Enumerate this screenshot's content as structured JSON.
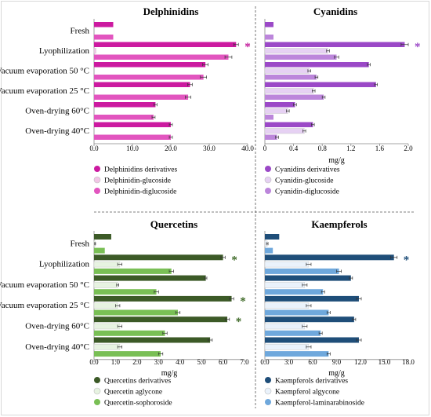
{
  "categories": [
    "Fresh",
    "Lyophilization",
    "Vacuum evaporation 50 °C",
    "Vacuum evaporation 25 °C",
    "Oven-drying 60°C",
    "Oven-drying 40°C"
  ],
  "chart_data": [
    {
      "type": "bar",
      "orientation": "horizontal",
      "title": "Delphinidins",
      "xlabel": "",
      "xlim": [
        0,
        40
      ],
      "ticks": [
        "0.0",
        "10.0",
        "20.0",
        "30.0",
        "40.0"
      ],
      "series": [
        {
          "name": "Delphinidins derivatives",
          "color": "#cc1aa0",
          "values": [
            5.0,
            37.0,
            29.0,
            25.0,
            16.0,
            20.0
          ],
          "errors": [
            0,
            0.6,
            0.7,
            0.6,
            0.4,
            0.4
          ]
        },
        {
          "name": "Delphinidin-glucoside",
          "color": "#f2c6e6",
          "values": [
            0,
            0.5,
            0,
            0,
            0,
            0
          ],
          "errors": [
            0,
            0,
            0,
            0,
            0,
            0
          ]
        },
        {
          "name": "Delphinidin-diglucoside",
          "color": "#e255bf",
          "values": [
            5.0,
            35.0,
            28.5,
            24.5,
            15.5,
            20.0
          ],
          "errors": [
            0,
            0.9,
            0.8,
            0.7,
            0.4,
            0.4
          ]
        }
      ],
      "significance": [
        "",
        "*",
        "",
        "",
        "",
        ""
      ],
      "star_color": "#c21a9b"
    },
    {
      "type": "bar",
      "orientation": "horizontal",
      "title": "Cyanidins",
      "xlabel": "mg/g",
      "xlim": [
        0,
        2
      ],
      "ticks": [
        "0",
        "0.4",
        "0.8",
        "1.2",
        "1.6",
        "2.0"
      ],
      "series": [
        {
          "name": "Cyanidins derivatives",
          "color": "#9b49c7",
          "values": [
            0.12,
            1.95,
            1.45,
            1.55,
            0.42,
            0.67
          ],
          "errors": [
            0,
            0.05,
            0.02,
            0.02,
            0.02,
            0.02
          ]
        },
        {
          "name": "Cyanidin-glucoside",
          "color": "#e6d1f3",
          "values": [
            0,
            0.88,
            0.62,
            0.68,
            0.32,
            0.55
          ],
          "errors": [
            0,
            0.02,
            0.02,
            0.02,
            0.02,
            0.02
          ]
        },
        {
          "name": "Cyanidin-diglucoside",
          "color": "#bc86db",
          "values": [
            0.12,
            1.0,
            0.72,
            0.82,
            0.12,
            0.17
          ],
          "errors": [
            0,
            0.03,
            0.02,
            0.02,
            0,
            0.02
          ]
        }
      ],
      "significance": [
        "",
        "*",
        "",
        "",
        "",
        ""
      ],
      "star_color": "#9b49c7"
    },
    {
      "type": "bar",
      "orientation": "horizontal",
      "title": "Quercetins",
      "xlabel": "mg/g",
      "xlim": [
        0,
        7
      ],
      "ticks": [
        "0.0",
        "1.0",
        "2.0",
        "3.0",
        "4.0",
        "5.0",
        "6.0",
        "7.0"
      ],
      "series": [
        {
          "name": "Quercetins derivatives",
          "color": "#3c5a27",
          "values": [
            0.8,
            6.0,
            5.2,
            6.4,
            6.2,
            5.4
          ],
          "errors": [
            0,
            0.1,
            0.05,
            0.1,
            0.1,
            0.1
          ]
        },
        {
          "name": "Quercetin aglycone",
          "color": "#e7f3e1",
          "values": [
            0.05,
            1.2,
            1.1,
            1.1,
            1.2,
            1.2
          ],
          "errors": [
            0.02,
            0.1,
            0.05,
            0.1,
            0.1,
            0.1
          ]
        },
        {
          "name": "Quercetin-sophoroside",
          "color": "#79bf55",
          "values": [
            0.5,
            3.6,
            2.9,
            3.9,
            3.3,
            3.1
          ],
          "errors": [
            0,
            0.1,
            0.1,
            0.1,
            0.1,
            0.1
          ]
        }
      ],
      "significance": [
        "",
        "*",
        "",
        "*",
        "*",
        ""
      ],
      "star_color": "#3f6a28"
    },
    {
      "type": "bar",
      "orientation": "horizontal",
      "title": "Kaempferols",
      "xlabel": "mg/g",
      "xlim": [
        0,
        18
      ],
      "ticks": [
        "0.0",
        "3.0",
        "6.0",
        "9.0",
        "12.0",
        "15.0",
        "18.0"
      ],
      "series": [
        {
          "name": "Kaempferols derivatives",
          "color": "#1f4e79",
          "values": [
            1.8,
            16.2,
            10.8,
            11.8,
            11.2,
            11.8
          ],
          "errors": [
            0,
            0.4,
            0.2,
            0.3,
            0.2,
            0.3
          ]
        },
        {
          "name": "Kaempferol algycone",
          "color": "#eaf2fb",
          "values": [
            0.3,
            5.5,
            5.0,
            5.5,
            5.0,
            5.5
          ],
          "errors": [
            0.1,
            0.3,
            0.3,
            0.3,
            0.3,
            0.3
          ]
        },
        {
          "name": "Kaempferol-laminarabinoside",
          "color": "#6fa8dc",
          "values": [
            1.0,
            9.3,
            7.3,
            8.0,
            7.0,
            8.0
          ],
          "errors": [
            0,
            0.3,
            0.2,
            0.2,
            0.2,
            0.2
          ]
        }
      ],
      "significance": [
        "",
        "*",
        "",
        "",
        "",
        ""
      ],
      "star_color": "#1f4e79"
    }
  ]
}
